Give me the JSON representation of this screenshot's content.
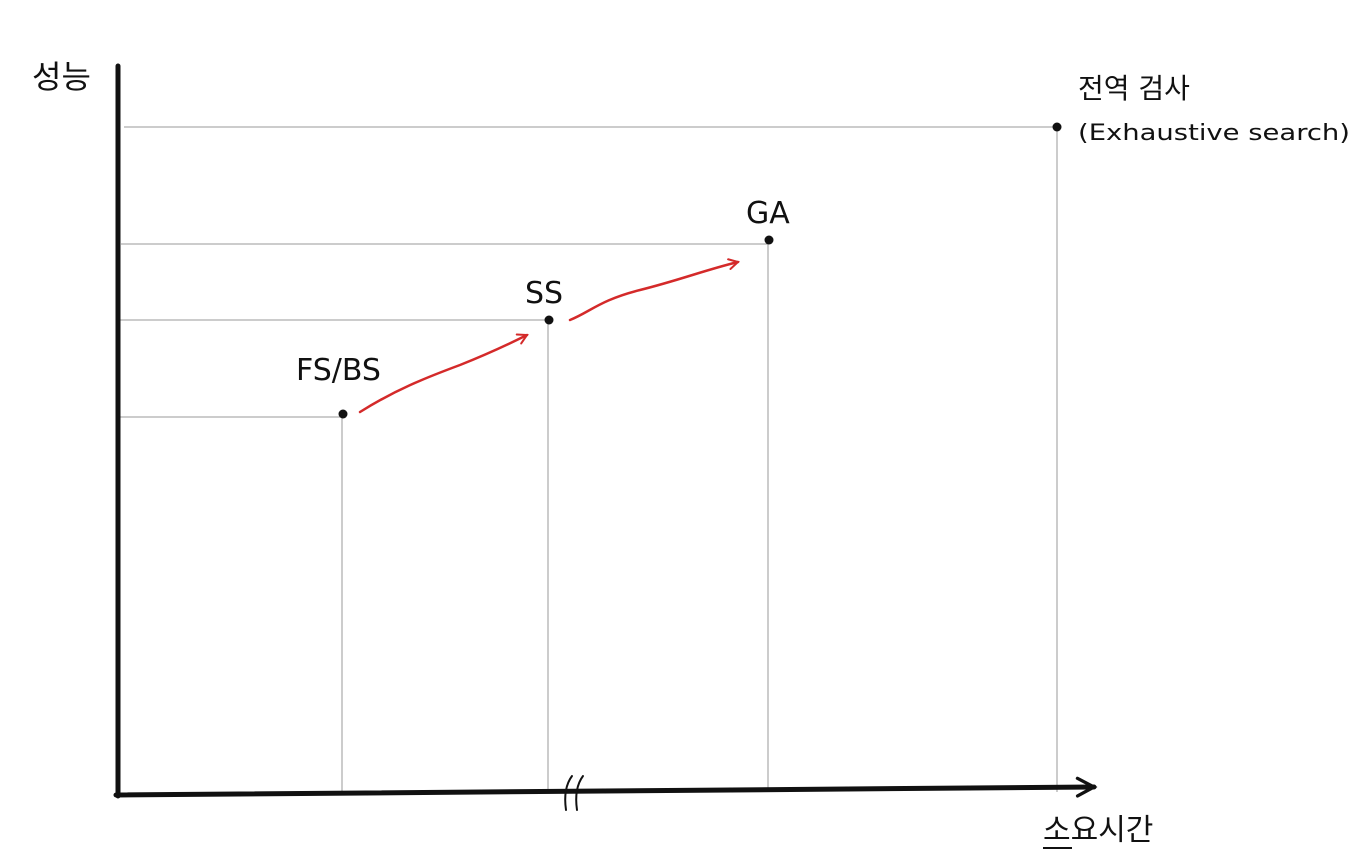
{
  "axes": {
    "y_label": "성능",
    "x_label": "소요시간"
  },
  "points": [
    {
      "id": "fs-bs",
      "label": "FS/BS"
    },
    {
      "id": "ss",
      "label": "SS"
    },
    {
      "id": "ga",
      "label": "GA"
    },
    {
      "id": "exhaustive",
      "label": "전역 검사",
      "sublabel": "(Exhaustive search)"
    }
  ],
  "colors": {
    "axis": "#111111",
    "guide": "#999999",
    "arrow": "#d42a2a",
    "point": "#111111"
  }
}
